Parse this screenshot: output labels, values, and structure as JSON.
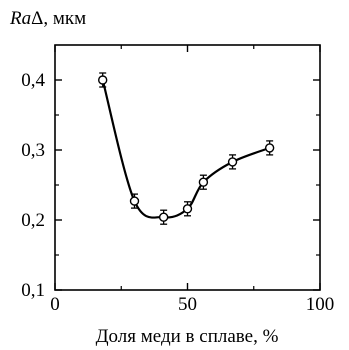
{
  "chart_data": {
    "type": "scatter",
    "ylabel_italic": "Ra",
    "ylabel_rest": "Δ, мкм",
    "xlabel": "Доля меди в сплаве, %",
    "xlim": [
      0,
      100
    ],
    "ylim": [
      0.1,
      0.45
    ],
    "x_ticks": [
      0,
      50,
      100
    ],
    "x_minor_ticks": [
      25,
      75
    ],
    "y_ticks": [
      0.1,
      0.2,
      0.3,
      0.4
    ],
    "y_minor_ticks": [
      0.15,
      0.25,
      0.35
    ],
    "x_tick_labels": [
      "0",
      "50",
      "100"
    ],
    "y_tick_labels": [
      "0,1",
      "0,2",
      "0,3",
      "0,4"
    ],
    "grid": false,
    "series": [
      {
        "x": [
          18,
          30,
          41,
          50,
          56,
          67,
          81
        ],
        "y": [
          0.4,
          0.227,
          0.204,
          0.216,
          0.254,
          0.283,
          0.303
        ],
        "error": [
          0.01,
          0.01,
          0.01,
          0.01,
          0.01,
          0.01,
          0.01
        ],
        "marker": "open-circle",
        "fit_curve": true
      }
    ]
  }
}
